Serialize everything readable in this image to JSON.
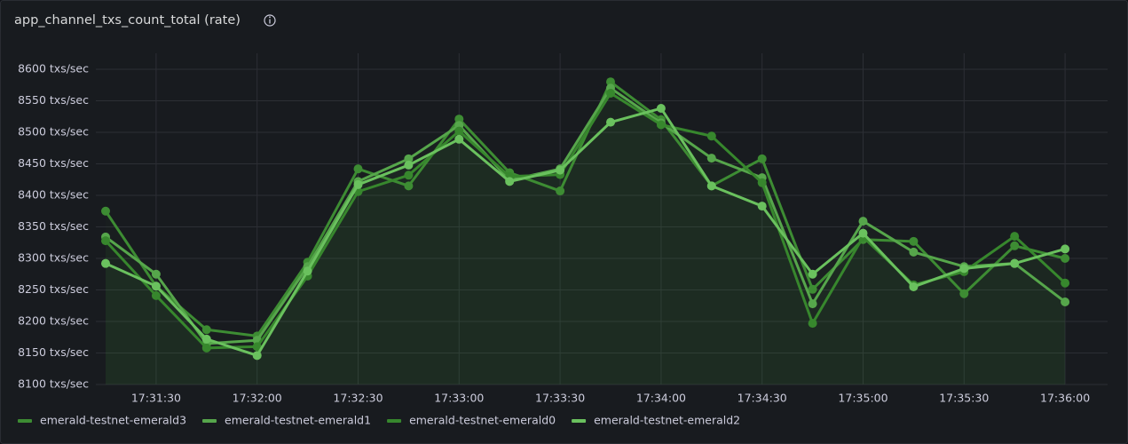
{
  "chart_data": {
    "type": "line",
    "title": "app_channel_txs_count_total (rate)",
    "categories": [
      null,
      "17:31:30",
      null,
      "17:32:00",
      null,
      "17:32:30",
      null,
      "17:33:00",
      null,
      "17:33:30",
      null,
      "17:34:00",
      null,
      "17:34:30",
      null,
      "17:35:00",
      null,
      "17:35:30",
      null,
      "17:36:00"
    ],
    "series": [
      {
        "name": "emerald-testnet-emerald3",
        "color": "#3d8c33",
        "values": [
          8375,
          8256,
          8187,
          8177,
          8294,
          8442,
          8415,
          8521,
          8436,
          8407,
          8580,
          8520,
          8415,
          8458,
          8251,
          8330,
          8327,
          8244,
          8320,
          8300
        ]
      },
      {
        "name": "emerald-testnet-emerald1",
        "color": "#56a64b",
        "values": [
          8334,
          8275,
          8165,
          8170,
          8287,
          8422,
          8458,
          8511,
          8424,
          8442,
          8570,
          8515,
          8459,
          8428,
          8228,
          8359,
          8310,
          8287,
          8292,
          8231
        ]
      },
      {
        "name": "emerald-testnet-emerald0",
        "color": "#37872d",
        "values": [
          8328,
          8241,
          8158,
          8160,
          8272,
          8406,
          8432,
          8502,
          8430,
          8433,
          8562,
          8512,
          8494,
          8420,
          8197,
          8334,
          8258,
          8279,
          8335,
          8261
        ]
      },
      {
        "name": "emerald-testnet-emerald2",
        "color": "#6ac15e",
        "values": [
          8292,
          8256,
          8172,
          8146,
          8280,
          8417,
          8448,
          8489,
          8422,
          8440,
          8516,
          8538,
          8415,
          8383,
          8275,
          8340,
          8255,
          8284,
          8292,
          8315
        ]
      }
    ],
    "ylim": [
      8100,
      8600
    ],
    "yticks": [
      {
        "value": 8100,
        "label": "8100 txs/sec"
      },
      {
        "value": 8150,
        "label": "8150 txs/sec"
      },
      {
        "value": 8200,
        "label": "8200 txs/sec"
      },
      {
        "value": 8250,
        "label": "8250 txs/sec"
      },
      {
        "value": 8300,
        "label": "8300 txs/sec"
      },
      {
        "value": 8350,
        "label": "8350 txs/sec"
      },
      {
        "value": 8400,
        "label": "8400 txs/sec"
      },
      {
        "value": 8450,
        "label": "8450 txs/sec"
      },
      {
        "value": 8500,
        "label": "8500 txs/sec"
      },
      {
        "value": 8550,
        "label": "8550 txs/sec"
      },
      {
        "value": 8600,
        "label": "8600 txs/sec"
      }
    ],
    "grid": true,
    "legend": "bottom-left"
  }
}
